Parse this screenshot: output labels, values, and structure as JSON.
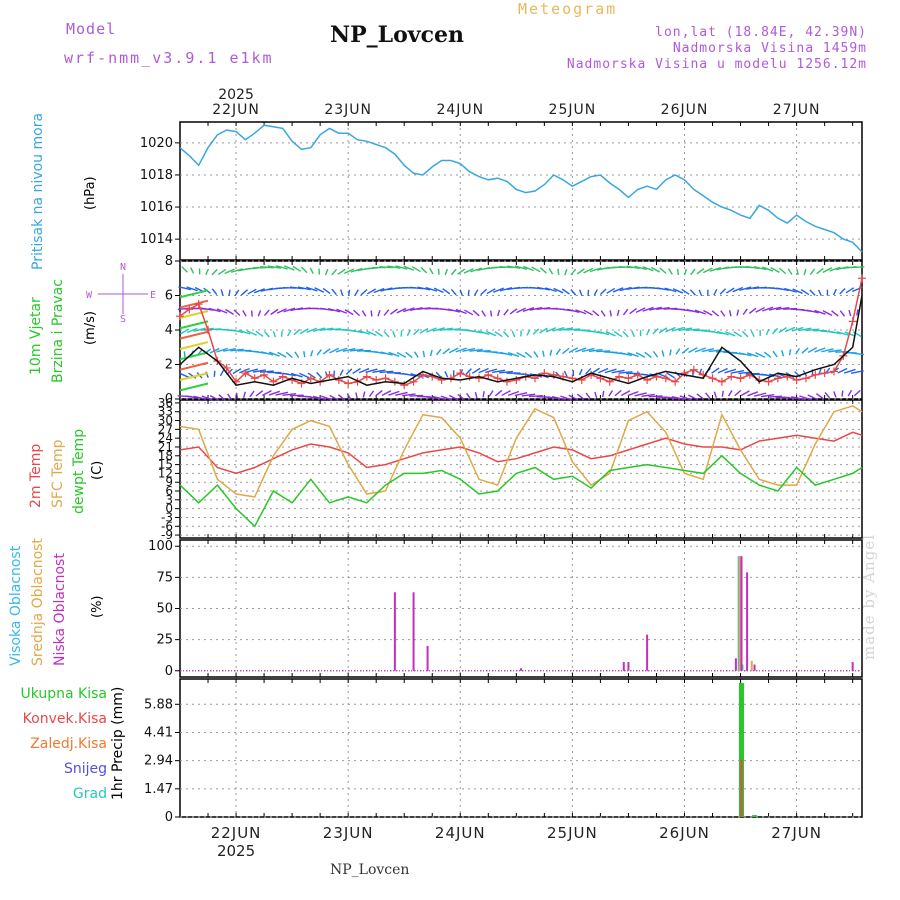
{
  "header": {
    "model_label": "Model",
    "model_version": "wrf-nmm_v3.9.1 e1km",
    "title": "NP_Lovcen",
    "meteogram": "Meteogram",
    "lonlat": "lon,lat (18.84E, 42.39N)",
    "elevation": "Nadmorska Visina 1459m",
    "model_elevation": "Nadmorska Visina u modelu 1256.12m"
  },
  "footer": {
    "station": "NP_Lovcen",
    "watermark": "made by Angel"
  },
  "time_axis": {
    "year": "2025",
    "ticks": [
      "22JUN",
      "23JUN",
      "24JUN",
      "25JUN",
      "26JUN",
      "27JUN"
    ],
    "tick_hours": [
      12,
      36,
      60,
      84,
      108,
      132
    ],
    "range_hours": [
      0,
      146
    ]
  },
  "panels": {
    "pressure": {
      "label": "Pritisak na nivou mora",
      "unit": "(hPa)"
    },
    "wind": {
      "label1": "10m Vjetar",
      "label2": "Brzina i Pravac",
      "unit": "(m/s)",
      "compass": {
        "n": "N",
        "s": "S",
        "e": "E",
        "w": "W"
      }
    },
    "temp": {
      "label1": "2m Temp",
      "label2": "SFC Temp",
      "label3": "dewpt Temp",
      "unit": "(C)"
    },
    "cloud": {
      "label1": "Visoka Oblacnost",
      "label2": "Srednja Oblacnost",
      "label3": "Niska Oblacnost",
      "unit": "(%)"
    },
    "precip": {
      "label_total": "Ukupna Kisa",
      "label_conv": "Konvek.Kisa",
      "label_frozen": "Zaledj.Kisa",
      "label_snow": "Snijeg",
      "label_graupel": "Grad",
      "unit": "1hr Precip (mm)"
    }
  },
  "colors": {
    "pressure": "#3aa6e0",
    "temp2m": "#e84848",
    "sfc": "#e0a848",
    "dewpt": "#28c828",
    "cloud_high": "#38b8e8",
    "cloud_mid": "#e0a848",
    "cloud_low": "#c030c0",
    "precip_total": "#28c828",
    "precip_conv": "#e84848",
    "precip_frozen": "#f07830",
    "precip_snow": "#5050e0",
    "precip_graupel": "#28c8b8",
    "gust": "#111111",
    "wind_speed": "#e84848",
    "label_purple": "#b05ad8"
  },
  "chart_data": [
    {
      "type": "line",
      "title": "Pritisak na nivou mora",
      "ylabel": "(hPa)",
      "x_unit": "hours",
      "ylim": [
        1012.7,
        1021.3
      ],
      "yticks": [
        1014,
        1016,
        1018,
        1020
      ],
      "series": [
        {
          "color": "#3aa6e0",
          "x": [
            0,
            2,
            4,
            6,
            8,
            10,
            12,
            14,
            16,
            18,
            20,
            22,
            24,
            26,
            28,
            30,
            32,
            34,
            36,
            38,
            40,
            42,
            44,
            46,
            48,
            50,
            52,
            54,
            56,
            58,
            60,
            62,
            64,
            66,
            68,
            70,
            72,
            74,
            76,
            78,
            80,
            82,
            84,
            86,
            88,
            90,
            92,
            94,
            96,
            98,
            100,
            102,
            104,
            106,
            108,
            110,
            112,
            114,
            116,
            118,
            120,
            122,
            124,
            126,
            128,
            130,
            132,
            134,
            136,
            138,
            140,
            142,
            144,
            146
          ],
          "y": [
            1019.7,
            1019.2,
            1018.6,
            1019.7,
            1020.5,
            1020.8,
            1020.7,
            1020.2,
            1020.6,
            1021.1,
            1021.0,
            1020.9,
            1020.1,
            1019.6,
            1019.7,
            1020.5,
            1020.9,
            1020.6,
            1020.6,
            1020.2,
            1020.1,
            1019.9,
            1019.7,
            1019.3,
            1018.6,
            1018.1,
            1018.0,
            1018.5,
            1018.9,
            1018.9,
            1018.7,
            1018.2,
            1017.9,
            1017.7,
            1017.8,
            1017.6,
            1017.1,
            1016.9,
            1017.0,
            1017.4,
            1018.0,
            1017.7,
            1017.3,
            1017.6,
            1017.9,
            1018.0,
            1017.5,
            1017.1,
            1016.6,
            1017.1,
            1017.3,
            1017.1,
            1017.7,
            1018.0,
            1017.7,
            1017.1,
            1016.7,
            1016.3,
            1016.0,
            1015.8,
            1015.5,
            1015.3,
            1016.1,
            1015.8,
            1015.3,
            1015.0,
            1015.5,
            1015.1,
            1014.8,
            1014.6,
            1014.4,
            1014.0,
            1013.8,
            1013.2
          ]
        }
      ]
    },
    {
      "type": "line",
      "title": "10m Vjetar Brzina i Pravac",
      "ylabel": "(m/s)",
      "x_unit": "hours",
      "ylim": [
        0,
        8
      ],
      "yticks": [
        0,
        2,
        4,
        6,
        8
      ],
      "series": [
        {
          "color": "#e84848",
          "marker": "+",
          "x": [
            0,
            2,
            4,
            6,
            8,
            10,
            12,
            14,
            16,
            18,
            20,
            22,
            24,
            26,
            28,
            30,
            32,
            34,
            36,
            38,
            40,
            42,
            44,
            46,
            48,
            50,
            52,
            54,
            56,
            58,
            60,
            62,
            64,
            66,
            68,
            70,
            72,
            74,
            76,
            78,
            80,
            82,
            84,
            86,
            88,
            90,
            92,
            94,
            96,
            98,
            100,
            102,
            104,
            106,
            108,
            110,
            112,
            114,
            116,
            118,
            120,
            122,
            124,
            126,
            128,
            130,
            132,
            134,
            136,
            138,
            140,
            142,
            144,
            146
          ],
          "y": [
            4.8,
            5.2,
            5.5,
            4.0,
            2.2,
            1.8,
            1.0,
            1.5,
            1.2,
            1.4,
            1.0,
            1.3,
            1.1,
            0.9,
            1.2,
            1.0,
            1.4,
            1.1,
            0.9,
            1.0,
            1.3,
            1.1,
            1.2,
            1.0,
            0.8,
            1.0,
            1.4,
            1.3,
            1.1,
            1.2,
            1.5,
            1.3,
            1.2,
            1.4,
            1.2,
            1.0,
            1.1,
            1.3,
            1.2,
            1.5,
            1.4,
            1.3,
            1.2,
            1.1,
            1.4,
            1.2,
            1.0,
            1.3,
            1.2,
            1.4,
            1.1,
            1.3,
            1.2,
            1.0,
            1.5,
            1.7,
            1.4,
            1.2,
            1.0,
            1.3,
            1.2,
            1.4,
            1.1,
            1.0,
            1.2,
            1.3,
            1.1,
            1.2,
            1.4,
            1.5,
            1.6,
            2.5,
            4.5,
            7.0
          ]
        },
        {
          "color": "#111111",
          "x": [
            0,
            4,
            8,
            12,
            16,
            20,
            24,
            28,
            32,
            36,
            40,
            44,
            48,
            52,
            56,
            60,
            64,
            68,
            72,
            76,
            80,
            84,
            88,
            92,
            96,
            100,
            104,
            108,
            112,
            116,
            120,
            124,
            128,
            132,
            136,
            140,
            144,
            146
          ],
          "y": [
            2.0,
            3.0,
            2.2,
            0.8,
            1.0,
            0.8,
            1.2,
            0.9,
            1.1,
            1.3,
            0.8,
            1.0,
            0.9,
            1.6,
            1.2,
            1.1,
            1.3,
            1.0,
            1.2,
            1.4,
            1.3,
            1.0,
            1.5,
            1.2,
            0.9,
            1.3,
            1.6,
            1.4,
            1.2,
            3.0,
            2.2,
            1.0,
            1.5,
            1.3,
            1.7,
            2.0,
            3.0,
            6.0
          ]
        }
      ]
    },
    {
      "type": "line",
      "title": "2m Temp / SFC Temp / dewpt Temp",
      "ylabel": "(C)",
      "x_unit": "hours",
      "ylim": [
        -10,
        37
      ],
      "yticks": [
        -9,
        -6,
        -3,
        0,
        3,
        6,
        9,
        12,
        15,
        18,
        21,
        24,
        27,
        30,
        33,
        36
      ],
      "series": [
        {
          "color": "#e84848",
          "x": [
            0,
            4,
            8,
            12,
            16,
            20,
            24,
            28,
            32,
            36,
            40,
            44,
            48,
            52,
            56,
            60,
            64,
            68,
            72,
            76,
            80,
            84,
            88,
            92,
            96,
            100,
            104,
            108,
            112,
            116,
            120,
            124,
            128,
            132,
            136,
            140,
            144,
            146
          ],
          "y": [
            20,
            21,
            14,
            12,
            14,
            17,
            20,
            22,
            21,
            19,
            14,
            15,
            17,
            19,
            20,
            21,
            19,
            16,
            17,
            19,
            21,
            20,
            17,
            18,
            20,
            22,
            24,
            22,
            21,
            21,
            20,
            23,
            24,
            25,
            24,
            23,
            26,
            25
          ]
        },
        {
          "color": "#e0a848",
          "x": [
            0,
            4,
            8,
            12,
            16,
            20,
            24,
            28,
            32,
            36,
            40,
            44,
            48,
            52,
            56,
            60,
            64,
            68,
            72,
            76,
            80,
            84,
            88,
            92,
            96,
            100,
            104,
            108,
            112,
            116,
            120,
            124,
            128,
            132,
            136,
            140,
            144,
            146
          ],
          "y": [
            28,
            27,
            10,
            5,
            4,
            18,
            27,
            30,
            28,
            15,
            5,
            6,
            20,
            32,
            31,
            24,
            10,
            8,
            24,
            34,
            31,
            16,
            8,
            12,
            30,
            33,
            26,
            12,
            10,
            32,
            20,
            10,
            8,
            8,
            22,
            33,
            35,
            33
          ]
        },
        {
          "color": "#28c828",
          "x": [
            0,
            4,
            8,
            12,
            16,
            20,
            24,
            28,
            32,
            36,
            40,
            44,
            48,
            52,
            56,
            60,
            64,
            68,
            72,
            76,
            80,
            84,
            88,
            92,
            96,
            100,
            104,
            108,
            112,
            116,
            120,
            124,
            128,
            132,
            136,
            140,
            144,
            146
          ],
          "y": [
            8,
            2,
            8,
            0,
            -6,
            6,
            2,
            10,
            2,
            4,
            2,
            8,
            12,
            12,
            13,
            10,
            5,
            6,
            12,
            14,
            10,
            11,
            7,
            13,
            14,
            15,
            14,
            13,
            12,
            18,
            12,
            8,
            6,
            14,
            8,
            10,
            12,
            14
          ]
        }
      ]
    },
    {
      "type": "bar",
      "title": "Oblacnost",
      "ylabel": "(%)",
      "x_unit": "hours",
      "ylim": [
        -5,
        105
      ],
      "yticks": [
        0,
        25,
        50,
        75,
        100
      ],
      "series": [
        {
          "name": "Visoka Oblacnost",
          "color": "#38b8e8",
          "x": [
            119.6,
            120.4
          ],
          "y": [
            92,
            5
          ]
        },
        {
          "name": "Srednja Oblacnost",
          "color": "#e0a848",
          "x": [
            119.8,
            122.4
          ],
          "y": [
            92,
            8
          ]
        },
        {
          "name": "Niska Oblacnost",
          "color": "#c030c0",
          "x": [
            46,
            50,
            53,
            73,
            95,
            96,
            100,
            119,
            120.2,
            121.4,
            123,
            144
          ],
          "y": [
            63,
            63,
            20,
            2,
            7,
            7,
            29,
            10,
            92,
            79,
            5,
            7
          ]
        }
      ]
    },
    {
      "type": "bar",
      "title": "1hr Precip",
      "ylabel": "1hr Precip (mm)",
      "x_unit": "hours",
      "ylim": [
        0,
        7.2
      ],
      "yticks": [
        0,
        1.47,
        2.94,
        4.41,
        5.88
      ],
      "series": [
        {
          "name": "Ukupna Kisa",
          "color": "#28c828",
          "x": [
            120.2,
            123
          ],
          "y": [
            7.0,
            0.1
          ]
        },
        {
          "name": "Konvek.Kisa",
          "color": "#e84848",
          "x": [
            120.2
          ],
          "y": [
            3.0
          ]
        }
      ]
    }
  ]
}
